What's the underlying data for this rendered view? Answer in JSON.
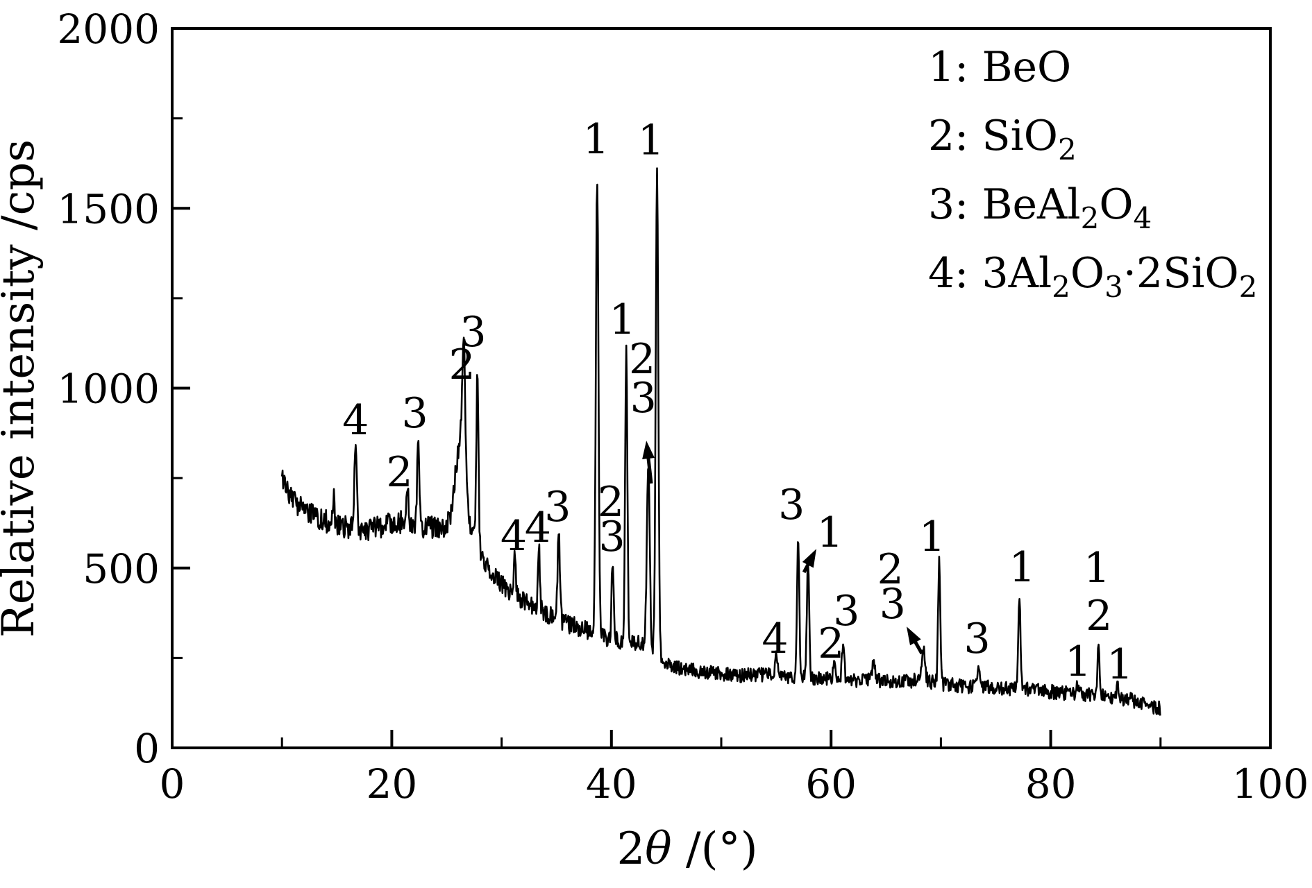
{
  "figure_bg": "#ffffff",
  "ink_color": "#000000",
  "chart_data": {
    "type": "line",
    "title": "",
    "xlabel_segments": [
      {
        "t": "2"
      },
      {
        "t": "θ",
        "italic": true
      },
      {
        "t": " /(°)"
      }
    ],
    "ylabel": "Relative intensity /cps",
    "xlim": [
      0,
      100
    ],
    "ylim": [
      0,
      2000
    ],
    "x_major_ticks": [
      0,
      20,
      40,
      60,
      80,
      100
    ],
    "x_minor_ticks": [
      10,
      30,
      50,
      70,
      90
    ],
    "y_major_ticks": [
      0,
      500,
      1000,
      1500,
      2000
    ],
    "y_minor_ticks": [
      250,
      750,
      1250,
      1750
    ],
    "x_tick_labels": [
      "0",
      "20",
      "40",
      "60",
      "80",
      "100"
    ],
    "y_tick_labels": [
      "0",
      "500",
      "1000",
      "1500",
      "2000"
    ],
    "grid": false,
    "legend_position": "upper-right-inside",
    "legend_items": [
      {
        "key": "1",
        "segments": [
          {
            "t": "1: BeO"
          }
        ]
      },
      {
        "key": "2",
        "segments": [
          {
            "t": "2: SiO"
          },
          {
            "t": "2",
            "sub": true
          }
        ]
      },
      {
        "key": "3",
        "segments": [
          {
            "t": "3: BeAl"
          },
          {
            "t": "2",
            "sub": true
          },
          {
            "t": "O"
          },
          {
            "t": "4",
            "sub": true
          }
        ]
      },
      {
        "key": "4",
        "segments": [
          {
            "t": "4: 3Al"
          },
          {
            "t": "2",
            "sub": true
          },
          {
            "t": "O"
          },
          {
            "t": "3",
            "sub": true
          },
          {
            "t": "·2SiO"
          },
          {
            "t": "2",
            "sub": true
          }
        ]
      }
    ],
    "phase_legend_meaning": {
      "1": "BeO",
      "2": "SiO2",
      "3": "BeAl2O4",
      "4": "3Al2O3·2SiO2"
    },
    "trace": {
      "x_range": [
        10,
        90
      ],
      "step_deg": 0.055,
      "noise_cps": [
        {
          "upto": 28,
          "amp": 32
        },
        {
          "upto": 44,
          "amp": 26
        },
        {
          "upto": 91,
          "amp": 20
        }
      ],
      "baseline_points": [
        [
          10,
          755
        ],
        [
          10.5,
          720
        ],
        [
          11,
          690
        ],
        [
          12,
          660
        ],
        [
          13,
          645
        ],
        [
          14,
          630
        ],
        [
          15,
          618
        ],
        [
          16,
          612
        ],
        [
          17,
          608
        ],
        [
          18,
          605
        ],
        [
          19,
          615
        ],
        [
          20,
          625
        ],
        [
          21,
          628
        ],
        [
          22,
          625
        ],
        [
          23,
          615
        ],
        [
          24,
          610
        ],
        [
          25,
          612
        ],
        [
          25.8,
          618
        ],
        [
          27.0,
          617
        ],
        [
          28,
          540
        ],
        [
          29,
          490
        ],
        [
          30,
          455
        ],
        [
          31,
          430
        ],
        [
          32,
          410
        ],
        [
          33,
          395
        ],
        [
          34,
          375
        ],
        [
          35,
          360
        ],
        [
          36,
          345
        ],
        [
          37,
          335
        ],
        [
          38,
          325
        ],
        [
          39,
          310
        ],
        [
          40,
          305
        ],
        [
          41,
          300
        ],
        [
          42,
          295
        ],
        [
          43,
          285
        ],
        [
          44,
          260
        ],
        [
          44.8,
          235
        ],
        [
          46,
          222
        ],
        [
          48,
          213
        ],
        [
          50,
          205
        ],
        [
          52,
          202
        ],
        [
          54,
          203
        ],
        [
          56,
          198
        ],
        [
          58,
          196
        ],
        [
          60,
          192
        ],
        [
          62,
          188
        ],
        [
          64,
          188
        ],
        [
          66,
          183
        ],
        [
          68,
          188
        ],
        [
          70,
          178
        ],
        [
          72,
          172
        ],
        [
          74,
          168
        ],
        [
          76,
          165
        ],
        [
          78,
          162
        ],
        [
          80,
          156
        ],
        [
          82,
          150
        ],
        [
          84,
          147
        ],
        [
          86,
          141
        ],
        [
          87,
          135
        ],
        [
          88,
          128
        ],
        [
          89,
          118
        ],
        [
          90,
          108
        ]
      ],
      "peaks": [
        {
          "two_theta": 14.7,
          "intensity_cps": 700,
          "sigma": 0.07
        },
        {
          "two_theta": 16.7,
          "intensity_cps": 850,
          "sigma": 0.1
        },
        {
          "two_theta": 21.4,
          "intensity_cps": 735,
          "sigma": 0.1
        },
        {
          "two_theta": 22.4,
          "intensity_cps": 868,
          "sigma": 0.09
        },
        {
          "two_theta": 26.2,
          "intensity_cps": 830,
          "sigma": 0.45
        },
        {
          "two_theta": 26.55,
          "intensity_cps": 985,
          "sigma": 0.14
        },
        {
          "two_theta": 27.8,
          "intensity_cps": 1050,
          "sigma": 0.1
        },
        {
          "two_theta": 31.2,
          "intensity_cps": 532,
          "sigma": 0.09
        },
        {
          "two_theta": 33.4,
          "intensity_cps": 550,
          "sigma": 0.09
        },
        {
          "two_theta": 35.2,
          "intensity_cps": 600,
          "sigma": 0.1
        },
        {
          "two_theta": 38.7,
          "intensity_cps": 1578,
          "sigma": 0.12
        },
        {
          "two_theta": 40.1,
          "intensity_cps": 521,
          "sigma": 0.09
        },
        {
          "two_theta": 41.35,
          "intensity_cps": 1119,
          "sigma": 0.1
        },
        {
          "two_theta": 43.35,
          "intensity_cps": 800,
          "sigma": 0.13
        },
        {
          "two_theta": 44.15,
          "intensity_cps": 1601,
          "sigma": 0.12
        },
        {
          "two_theta": 55.0,
          "intensity_cps": 255,
          "sigma": 0.1
        },
        {
          "two_theta": 57.0,
          "intensity_cps": 584,
          "sigma": 0.1
        },
        {
          "two_theta": 57.9,
          "intensity_cps": 527,
          "sigma": 0.1
        },
        {
          "two_theta": 60.3,
          "intensity_cps": 252,
          "sigma": 0.1
        },
        {
          "two_theta": 61.1,
          "intensity_cps": 300,
          "sigma": 0.1
        },
        {
          "two_theta": 63.9,
          "intensity_cps": 245,
          "sigma": 0.12
        },
        {
          "two_theta": 68.4,
          "intensity_cps": 272,
          "sigma": 0.15
        },
        {
          "two_theta": 69.85,
          "intensity_cps": 527,
          "sigma": 0.1
        },
        {
          "two_theta": 73.4,
          "intensity_cps": 230,
          "sigma": 0.1
        },
        {
          "two_theta": 77.15,
          "intensity_cps": 424,
          "sigma": 0.1
        },
        {
          "two_theta": 82.4,
          "intensity_cps": 185,
          "sigma": 0.09
        },
        {
          "two_theta": 84.35,
          "intensity_cps": 285,
          "sigma": 0.1
        },
        {
          "two_theta": 86.1,
          "intensity_cps": 175,
          "sigma": 0.09
        }
      ]
    },
    "peak_labels": [
      {
        "text": "4",
        "two_theta": 16.7,
        "cps": 912
      },
      {
        "text": "2",
        "two_theta": 20.7,
        "cps": 768
      },
      {
        "text": "3",
        "two_theta": 22.1,
        "cps": 932
      },
      {
        "text": "2",
        "two_theta": 26.4,
        "cps": 1067
      },
      {
        "text": "3",
        "two_theta": 27.4,
        "cps": 1157
      },
      {
        "text": "4",
        "two_theta": 31.1,
        "cps": 590
      },
      {
        "text": "4",
        "two_theta": 33.3,
        "cps": 613
      },
      {
        "text": "3",
        "two_theta": 35.1,
        "cps": 671
      },
      {
        "text": "1",
        "two_theta": 38.6,
        "cps": 1693
      },
      {
        "text": "2",
        "two_theta": 39.95,
        "cps": 685
      },
      {
        "text": "3",
        "two_theta": 40.05,
        "cps": 588
      },
      {
        "text": "1",
        "two_theta": 41.0,
        "cps": 1192
      },
      {
        "text": "2",
        "two_theta": 42.8,
        "cps": 1082
      },
      {
        "text": "3",
        "two_theta": 42.9,
        "cps": 974
      },
      {
        "text": "1",
        "two_theta": 43.6,
        "cps": 1690
      },
      {
        "text": "4",
        "two_theta": 54.9,
        "cps": 305
      },
      {
        "text": "3",
        "two_theta": 56.4,
        "cps": 677
      },
      {
        "text": "1",
        "two_theta": 59.9,
        "cps": 600
      },
      {
        "text": "2",
        "two_theta": 60.0,
        "cps": 291
      },
      {
        "text": "3",
        "two_theta": 61.4,
        "cps": 382
      },
      {
        "text": "2",
        "two_theta": 65.4,
        "cps": 498
      },
      {
        "text": "3",
        "two_theta": 65.6,
        "cps": 401
      },
      {
        "text": "1",
        "two_theta": 69.2,
        "cps": 588
      },
      {
        "text": "3",
        "two_theta": 73.3,
        "cps": 305
      },
      {
        "text": "1",
        "two_theta": 77.4,
        "cps": 503
      },
      {
        "text": "1",
        "two_theta": 82.5,
        "cps": 241
      },
      {
        "text": "1",
        "two_theta": 84.2,
        "cps": 501
      },
      {
        "text": "2",
        "two_theta": 84.4,
        "cps": 368
      },
      {
        "text": "1",
        "two_theta": 86.3,
        "cps": 233
      }
    ],
    "annotation_arrows": [
      {
        "tail": {
          "two_theta": 43.62,
          "cps": 735
        },
        "tip": {
          "two_theta": 43.18,
          "cps": 854
        }
      },
      {
        "tail": {
          "two_theta": 57.53,
          "cps": 488
        },
        "tip": {
          "two_theta": 58.66,
          "cps": 553
        }
      },
      {
        "tail": {
          "two_theta": 68.27,
          "cps": 262
        },
        "tip": {
          "two_theta": 66.88,
          "cps": 337
        }
      }
    ]
  }
}
